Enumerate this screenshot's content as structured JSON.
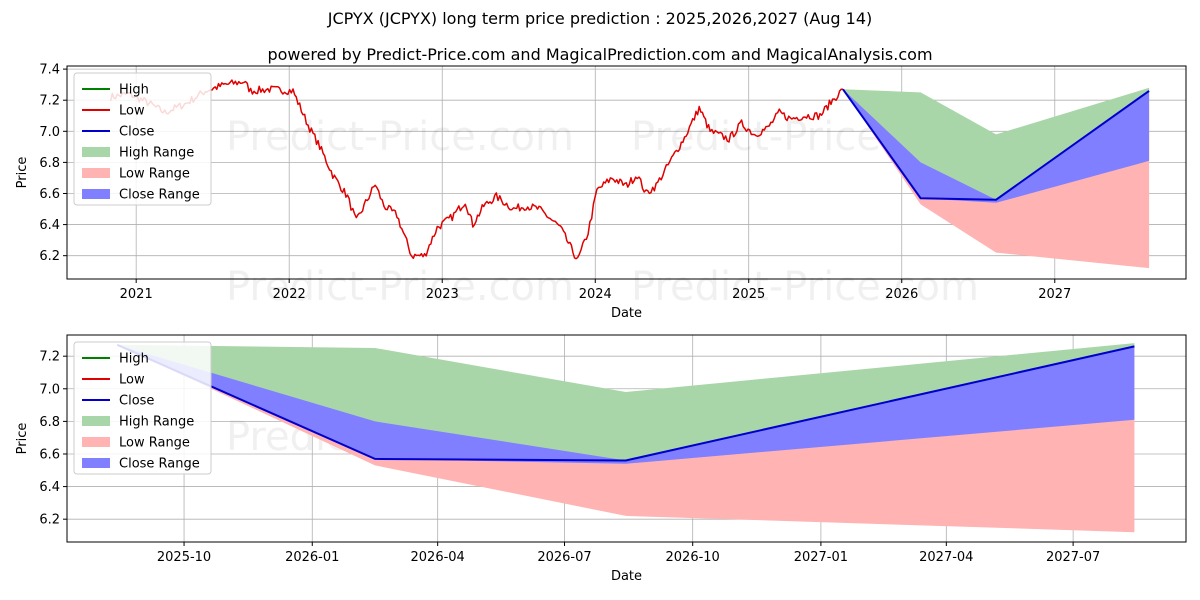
{
  "title": "JCPYX (JCPYX) long term price prediction : 2025,2026,2027 (Aug 14)",
  "subtitle": "powered by Predict-Price.com and MagicalPrediction.com and MagicalAnalysis.com",
  "watermark": "Predict-Price.com",
  "colors": {
    "high": "#008000",
    "low": "#e00000",
    "close": "#0000cc",
    "high_range": "#a9d6a9",
    "low_range": "#ffb3b3",
    "close_range": "#7f7fff",
    "grid": "#b0b0b0"
  },
  "legend": [
    {
      "label": "High",
      "kind": "line",
      "color": "#008000"
    },
    {
      "label": "Low",
      "kind": "line",
      "color": "#e00000"
    },
    {
      "label": "Close",
      "kind": "line",
      "color": "#0000cc"
    },
    {
      "label": "High Range",
      "kind": "patch",
      "color": "#a9d6a9"
    },
    {
      "label": "Low Range",
      "kind": "patch",
      "color": "#ffb3b3"
    },
    {
      "label": "Close Range",
      "kind": "patch",
      "color": "#7f7fff"
    }
  ],
  "chart_data": [
    {
      "type": "line",
      "xlabel": "Date",
      "ylabel": "Price",
      "legend_position": "top-left",
      "grid": true,
      "xlim": [
        "2020-07-20",
        "2027-11-10"
      ],
      "ylim": [
        6.05,
        7.42
      ],
      "xticks": [
        {
          "label": "2021",
          "date": "2021-01-01"
        },
        {
          "label": "2022",
          "date": "2022-01-01"
        },
        {
          "label": "2023",
          "date": "2023-01-01"
        },
        {
          "label": "2024",
          "date": "2024-01-01"
        },
        {
          "label": "2025",
          "date": "2025-01-01"
        },
        {
          "label": "2026",
          "date": "2026-01-01"
        },
        {
          "label": "2027",
          "date": "2027-01-01"
        }
      ],
      "yticks": [
        6.2,
        6.4,
        6.6,
        6.8,
        7.0,
        7.2,
        7.4
      ],
      "history": {
        "name": "Low",
        "dates": [
          "2020-11-01",
          "2020-12-15",
          "2021-02-01",
          "2021-03-10",
          "2021-05-01",
          "2021-06-15",
          "2021-08-01",
          "2021-09-15",
          "2021-10-01",
          "2021-11-15",
          "2022-01-10",
          "2022-02-15",
          "2022-03-15",
          "2022-04-15",
          "2022-05-20",
          "2022-06-10",
          "2022-06-25",
          "2022-07-25",
          "2022-08-15",
          "2022-09-15",
          "2022-10-20",
          "2022-11-20",
          "2022-12-20",
          "2023-01-25",
          "2023-02-25",
          "2023-03-15",
          "2023-04-10",
          "2023-05-10",
          "2023-06-20",
          "2023-07-20",
          "2023-08-20",
          "2023-09-15",
          "2023-10-10",
          "2023-10-25",
          "2023-11-20",
          "2023-12-15",
          "2024-01-05",
          "2024-02-10",
          "2024-03-15",
          "2024-04-10",
          "2024-05-01",
          "2024-05-25",
          "2024-07-01",
          "2024-08-01",
          "2024-09-05",
          "2024-10-01",
          "2024-11-15",
          "2024-12-15",
          "2025-01-15",
          "2025-02-15",
          "2025-03-15",
          "2025-04-10",
          "2025-05-15",
          "2025-06-20",
          "2025-07-20",
          "2025-08-14"
        ],
        "values": [
          7.22,
          7.24,
          7.18,
          7.12,
          7.18,
          7.26,
          7.3,
          7.32,
          7.26,
          7.27,
          7.26,
          7.04,
          6.9,
          6.72,
          6.58,
          6.42,
          6.5,
          6.66,
          6.52,
          6.46,
          6.2,
          6.2,
          6.38,
          6.45,
          6.55,
          6.4,
          6.52,
          6.58,
          6.5,
          6.52,
          6.5,
          6.44,
          6.38,
          6.3,
          6.17,
          6.35,
          6.62,
          6.7,
          6.65,
          6.72,
          6.6,
          6.65,
          6.82,
          6.96,
          7.15,
          7.0,
          6.95,
          7.05,
          6.98,
          7.02,
          7.12,
          7.08,
          7.1,
          7.1,
          7.2,
          7.27
        ]
      },
      "forecast": {
        "dates": [
          "2025-08-14",
          "2026-02-15",
          "2026-08-14",
          "2027-08-14"
        ],
        "close": [
          7.27,
          6.57,
          6.56,
          7.26
        ],
        "high_range": {
          "upper": [
            7.27,
            7.25,
            6.98,
            7.28
          ],
          "lower": [
            7.27,
            6.57,
            6.56,
            7.26
          ]
        },
        "low_range": {
          "upper": [
            7.27,
            6.57,
            6.56,
            7.26
          ],
          "lower": [
            7.27,
            6.53,
            6.22,
            6.12
          ]
        },
        "close_range": {
          "upper": [
            7.27,
            6.8,
            6.56,
            7.26
          ],
          "lower": [
            7.27,
            6.57,
            6.54,
            6.81
          ]
        }
      }
    },
    {
      "type": "line",
      "xlabel": "Date",
      "ylabel": "Price",
      "legend_position": "top-left",
      "grid": true,
      "xlim": [
        "2025-07-09",
        "2027-09-20"
      ],
      "ylim": [
        6.06,
        7.33
      ],
      "xticks": [
        {
          "label": "2025-10",
          "date": "2025-10-01"
        },
        {
          "label": "2026-01",
          "date": "2026-01-01"
        },
        {
          "label": "2026-04",
          "date": "2026-04-01"
        },
        {
          "label": "2026-07",
          "date": "2026-07-01"
        },
        {
          "label": "2026-10",
          "date": "2026-10-01"
        },
        {
          "label": "2027-01",
          "date": "2027-01-01"
        },
        {
          "label": "2027-04",
          "date": "2027-04-01"
        },
        {
          "label": "2027-07",
          "date": "2027-07-01"
        }
      ],
      "yticks": [
        6.2,
        6.4,
        6.6,
        6.8,
        7.0,
        7.2
      ],
      "forecast": {
        "dates": [
          "2025-08-14",
          "2026-02-15",
          "2026-08-14",
          "2027-08-14"
        ],
        "close": [
          7.27,
          6.57,
          6.56,
          7.26
        ],
        "high_range": {
          "upper": [
            7.27,
            7.25,
            6.98,
            7.28
          ],
          "lower": [
            7.27,
            6.57,
            6.56,
            7.26
          ]
        },
        "low_range": {
          "upper": [
            7.27,
            6.57,
            6.56,
            7.26
          ],
          "lower": [
            7.27,
            6.53,
            6.22,
            6.12
          ]
        },
        "close_range": {
          "upper": [
            7.27,
            6.8,
            6.56,
            7.26
          ],
          "lower": [
            7.27,
            6.57,
            6.54,
            6.81
          ]
        }
      }
    }
  ]
}
